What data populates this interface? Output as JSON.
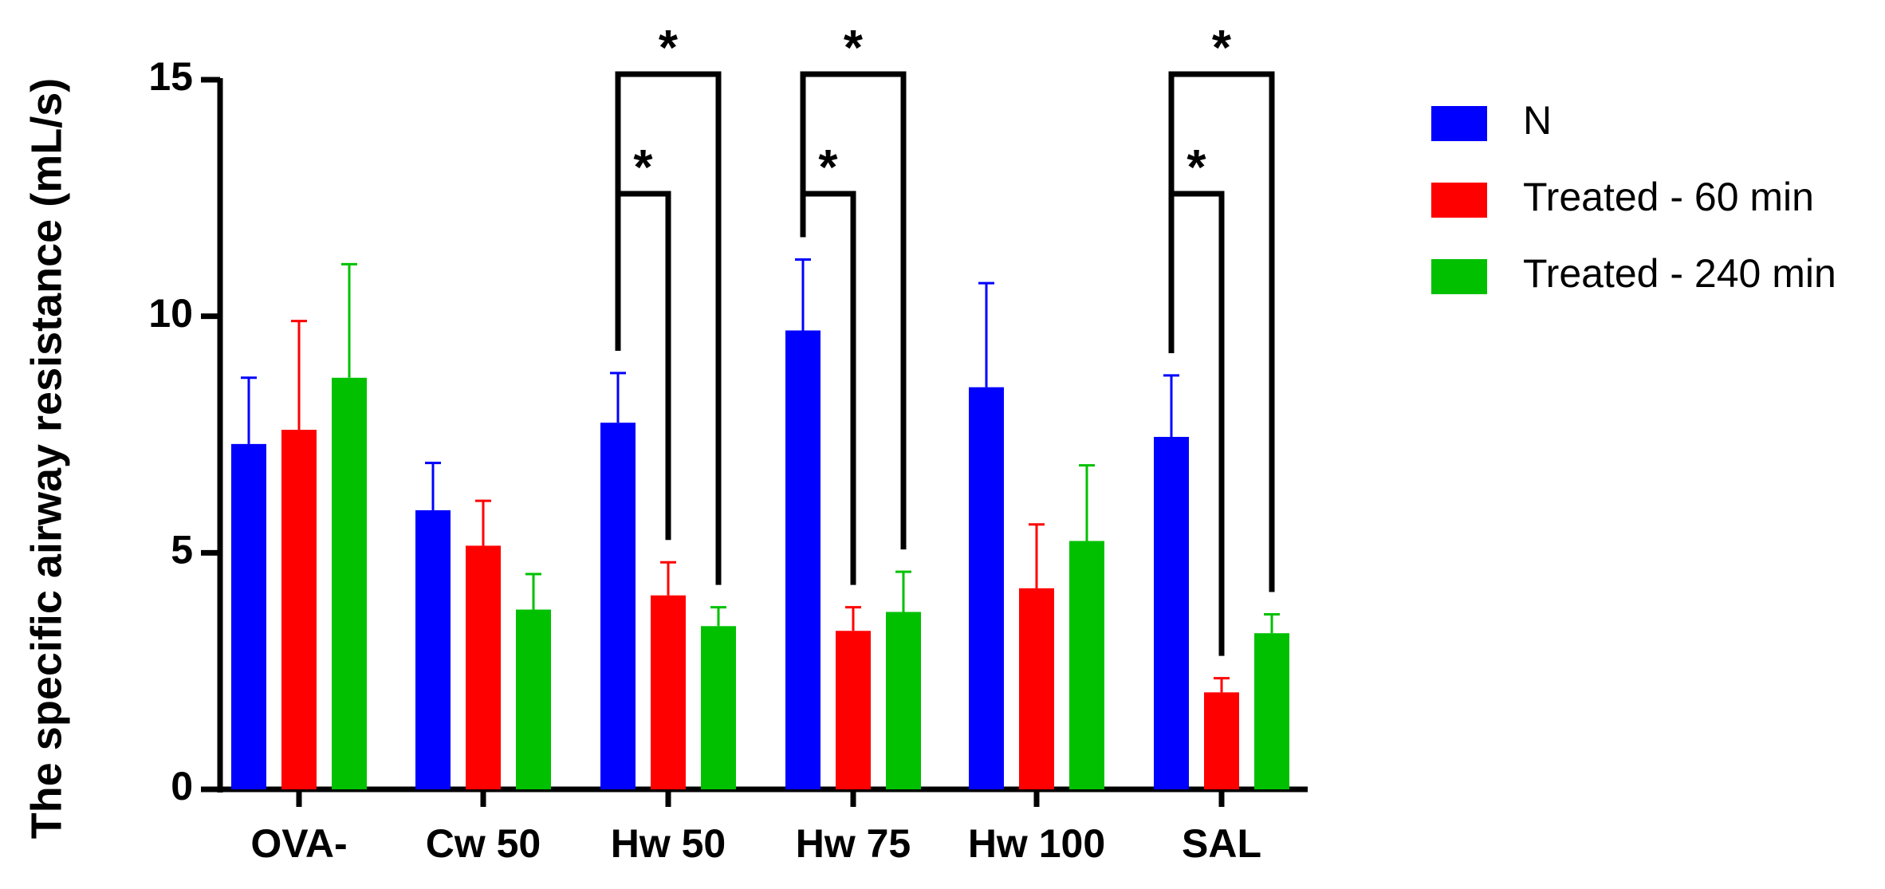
{
  "chart_data": {
    "type": "bar",
    "title": "",
    "xlabel": "",
    "ylabel": "The specific airway resistance (mL/s)",
    "ylim": [
      0,
      15
    ],
    "yticks": [
      0,
      5,
      10,
      15
    ],
    "categories": [
      "OVA-",
      "Cw 50",
      "Hw 50",
      "Hw 75",
      "Hw 100",
      "SAL"
    ],
    "series": [
      {
        "name": "N",
        "color": "#0000ff",
        "values": [
          7.3,
          5.9,
          7.75,
          9.7,
          8.5,
          7.45
        ],
        "errors": [
          1.4,
          1.0,
          1.05,
          1.5,
          2.2,
          1.3
        ]
      },
      {
        "name": "Treated - 60 min",
        "color": "#ff0000",
        "values": [
          7.6,
          5.15,
          4.1,
          3.35,
          4.25,
          2.05
        ],
        "errors": [
          2.3,
          0.95,
          0.7,
          0.5,
          1.35,
          0.3
        ]
      },
      {
        "name": "Treated - 240 min",
        "color": "#00c000",
        "values": [
          8.7,
          3.8,
          3.45,
          3.75,
          5.25,
          3.3
        ],
        "errors": [
          2.4,
          0.75,
          0.4,
          0.85,
          1.6,
          0.4
        ]
      }
    ],
    "legend_position": "right",
    "grid": false,
    "significance": [
      {
        "category": 2,
        "from": 0,
        "to": 1,
        "label": "*"
      },
      {
        "category": 2,
        "from": 0,
        "to": 2,
        "label": "*"
      },
      {
        "category": 3,
        "from": 0,
        "to": 1,
        "label": "*"
      },
      {
        "category": 3,
        "from": 0,
        "to": 2,
        "label": "*"
      },
      {
        "category": 5,
        "from": 0,
        "to": 1,
        "label": "*"
      },
      {
        "category": 5,
        "from": 0,
        "to": 2,
        "label": "*"
      }
    ]
  }
}
